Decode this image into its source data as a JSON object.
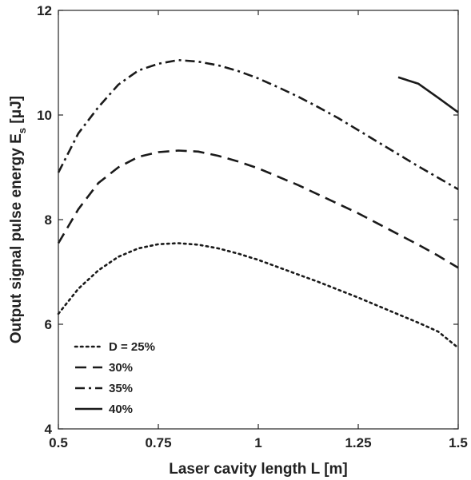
{
  "chart_data": {
    "type": "line",
    "xlabel": "Laser cavity length L [m]",
    "ylabel_main": "Output signal pulse energy E",
    "ylabel_sub": "s",
    "ylabel_unit": " [μJ]",
    "xlim": [
      0.5,
      1.5
    ],
    "ylim": [
      4,
      12
    ],
    "xticks": [
      0.5,
      0.75,
      1,
      1.25,
      1.5
    ],
    "xtick_labels": [
      "0.5",
      "0.75",
      "1",
      "1.25",
      "1.5"
    ],
    "yticks": [
      4,
      6,
      8,
      10,
      12
    ],
    "ytick_labels": [
      "4",
      "6",
      "8",
      "10",
      "12"
    ],
    "grid": false,
    "legend_position": "bottom-left",
    "series": [
      {
        "name": "D = 25%",
        "style": "dotted",
        "x": [
          0.5,
          0.55,
          0.6,
          0.65,
          0.7,
          0.75,
          0.8,
          0.85,
          0.9,
          0.95,
          1.0,
          1.05,
          1.1,
          1.15,
          1.2,
          1.25,
          1.3,
          1.35,
          1.4,
          1.45,
          1.5
        ],
        "y": [
          6.2,
          6.68,
          7.03,
          7.29,
          7.45,
          7.53,
          7.55,
          7.52,
          7.45,
          7.35,
          7.23,
          7.09,
          6.95,
          6.81,
          6.66,
          6.51,
          6.35,
          6.19,
          6.03,
          5.86,
          5.55
        ]
      },
      {
        "name": "30%",
        "style": "dashed",
        "x": [
          0.5,
          0.55,
          0.6,
          0.65,
          0.7,
          0.75,
          0.8,
          0.85,
          0.9,
          0.95,
          1.0,
          1.05,
          1.1,
          1.15,
          1.2,
          1.25,
          1.3,
          1.35,
          1.4,
          1.45,
          1.5
        ],
        "y": [
          7.55,
          8.2,
          8.7,
          9.0,
          9.2,
          9.29,
          9.32,
          9.3,
          9.22,
          9.11,
          8.98,
          8.82,
          8.66,
          8.48,
          8.3,
          8.12,
          7.92,
          7.72,
          7.52,
          7.31,
          7.08
        ]
      },
      {
        "name": "35%",
        "style": "dashdot",
        "x": [
          0.5,
          0.55,
          0.6,
          0.65,
          0.7,
          0.75,
          0.8,
          0.85,
          0.9,
          0.95,
          1.0,
          1.05,
          1.1,
          1.15,
          1.2,
          1.25,
          1.3,
          1.35,
          1.4,
          1.45,
          1.5
        ],
        "y": [
          8.9,
          9.65,
          10.15,
          10.58,
          10.85,
          10.98,
          11.05,
          11.02,
          10.95,
          10.84,
          10.7,
          10.53,
          10.35,
          10.15,
          9.94,
          9.71,
          9.48,
          9.25,
          9.02,
          8.8,
          8.58
        ]
      },
      {
        "name": "40%",
        "style": "solid",
        "x": [
          1.35,
          1.4,
          1.45,
          1.5
        ],
        "y": [
          10.72,
          10.6,
          10.33,
          10.05
        ]
      }
    ]
  },
  "colors": {
    "line": "#1a1a1a",
    "axis": "#262626",
    "background": "#ffffff"
  }
}
